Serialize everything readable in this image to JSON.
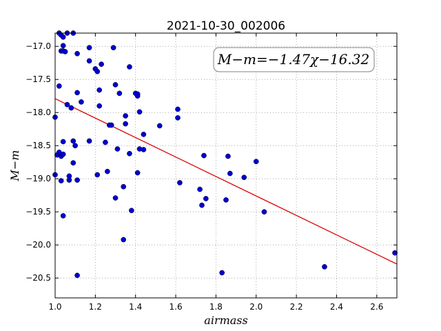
{
  "chart_data": {
    "type": "scatter",
    "title": "2021-10-30_002006",
    "xlabel": "airmass",
    "ylabel": "M−m",
    "xlim": [
      1.0,
      2.7
    ],
    "ylim": [
      -20.8,
      -16.8
    ],
    "x_ticks": [
      1.0,
      1.2,
      1.4,
      1.6,
      1.8,
      2.0,
      2.2,
      2.4,
      2.6
    ],
    "x_tick_labels": [
      "1.0",
      "1.2",
      "1.4",
      "1.6",
      "1.8",
      "2.0",
      "2.2",
      "2.4",
      "2.6"
    ],
    "y_ticks": [
      -17.0,
      -17.5,
      -18.0,
      -18.5,
      -19.0,
      -19.5,
      -20.0,
      -20.5
    ],
    "y_tick_labels": [
      "−17.0",
      "−17.5",
      "−18.0",
      "−18.5",
      "−19.0",
      "−19.5",
      "−20.0",
      "−20.5"
    ],
    "grid": true,
    "annotation": "M−m=−1.47χ−16.32",
    "fit": {
      "slope": -1.47,
      "intercept": -16.32
    },
    "colors": {
      "points": "#0000cc",
      "fit_line": "#dd0000",
      "grid": "#999999"
    },
    "points": [
      [
        1.0,
        -18.07
      ],
      [
        1.0,
        -18.94
      ],
      [
        1.01,
        -18.64
      ],
      [
        1.02,
        -17.6
      ],
      [
        1.02,
        -18.6
      ],
      [
        1.02,
        -16.8
      ],
      [
        1.03,
        -16.83
      ],
      [
        1.03,
        -17.07
      ],
      [
        1.03,
        -18.66
      ],
      [
        1.03,
        -19.03
      ],
      [
        1.04,
        -16.86
      ],
      [
        1.04,
        -17.07
      ],
      [
        1.04,
        -16.99
      ],
      [
        1.04,
        -18.44
      ],
      [
        1.04,
        -18.63
      ],
      [
        1.04,
        -19.56
      ],
      [
        1.05,
        -17.08
      ],
      [
        1.06,
        -16.8
      ],
      [
        1.06,
        -17.88
      ],
      [
        1.07,
        -18.96
      ],
      [
        1.07,
        -19.02
      ],
      [
        1.08,
        -17.93
      ],
      [
        1.09,
        -18.43
      ],
      [
        1.09,
        -18.76
      ],
      [
        1.09,
        -16.8
      ],
      [
        1.1,
        -18.5
      ],
      [
        1.11,
        -17.11
      ],
      [
        1.11,
        -17.7
      ],
      [
        1.11,
        -19.02
      ],
      [
        1.11,
        -20.46
      ],
      [
        1.13,
        -17.84
      ],
      [
        1.17,
        -17.02
      ],
      [
        1.17,
        -17.22
      ],
      [
        1.17,
        -18.43
      ],
      [
        1.2,
        -17.34
      ],
      [
        1.21,
        -17.38
      ],
      [
        1.21,
        -18.94
      ],
      [
        1.22,
        -17.66
      ],
      [
        1.22,
        -17.9
      ],
      [
        1.23,
        -17.27
      ],
      [
        1.25,
        -18.45
      ],
      [
        1.26,
        -18.89
      ],
      [
        1.27,
        -18.19
      ],
      [
        1.28,
        -18.19
      ],
      [
        1.29,
        -17.02
      ],
      [
        1.3,
        -17.58
      ],
      [
        1.3,
        -19.29
      ],
      [
        1.31,
        -18.55
      ],
      [
        1.32,
        -17.71
      ],
      [
        1.34,
        -19.12
      ],
      [
        1.34,
        -19.92
      ],
      [
        1.35,
        -18.05
      ],
      [
        1.35,
        -18.17
      ],
      [
        1.37,
        -17.31
      ],
      [
        1.37,
        -18.62
      ],
      [
        1.38,
        -19.48
      ],
      [
        1.4,
        -17.71
      ],
      [
        1.41,
        -17.72
      ],
      [
        1.41,
        -17.75
      ],
      [
        1.41,
        -18.91
      ],
      [
        1.42,
        -18.55
      ],
      [
        1.42,
        -17.99
      ],
      [
        1.44,
        -18.33
      ],
      [
        1.44,
        -18.56
      ],
      [
        1.52,
        -18.2
      ],
      [
        1.61,
        -17.95
      ],
      [
        1.61,
        -18.08
      ],
      [
        1.62,
        -19.06
      ],
      [
        1.72,
        -19.16
      ],
      [
        1.73,
        -19.4
      ],
      [
        1.74,
        -18.65
      ],
      [
        1.75,
        -19.3
      ],
      [
        1.83,
        -20.42
      ],
      [
        1.85,
        -19.32
      ],
      [
        1.86,
        -18.66
      ],
      [
        1.87,
        -18.92
      ],
      [
        1.94,
        -18.98
      ],
      [
        2.0,
        -18.74
      ],
      [
        2.04,
        -19.5
      ],
      [
        2.34,
        -20.33
      ],
      [
        2.69,
        -20.12
      ]
    ]
  }
}
